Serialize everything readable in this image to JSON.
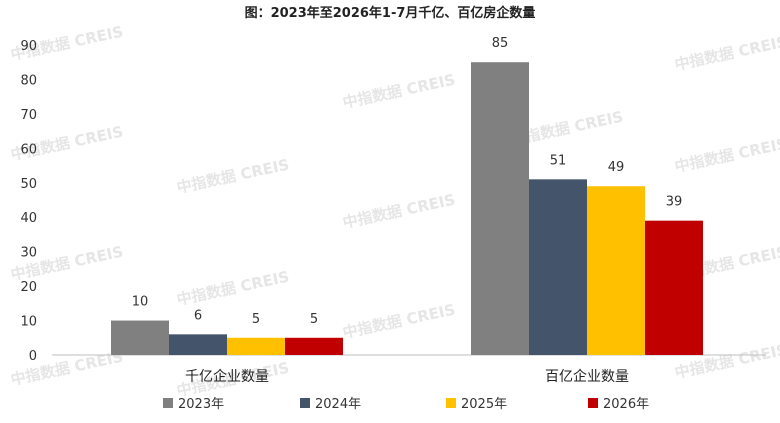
{
  "watermark": "中指数据 CREIS",
  "chart_data": {
    "type": "bar",
    "title": "图：2023年至2026年1-7月千亿、百亿房企数量",
    "categories": [
      "千亿企业数量",
      "百亿企业数量"
    ],
    "series": [
      {
        "name": "2023年",
        "color": "#808080",
        "values": [
          10,
          85
        ]
      },
      {
        "name": "2024年",
        "color": "#44546a",
        "values": [
          6,
          51
        ]
      },
      {
        "name": "2025年",
        "color": "#ffc000",
        "values": [
          5,
          49
        ]
      },
      {
        "name": "2026年",
        "color": "#c00000",
        "values": [
          5,
          39
        ]
      }
    ],
    "yticks": [
      "0",
      "10",
      "20",
      "30",
      "40",
      "50",
      "60",
      "70",
      "80",
      "90"
    ],
    "ylim": [
      0,
      90
    ],
    "xlabel": "",
    "ylabel": "",
    "grid": false,
    "legend": "bottom"
  }
}
